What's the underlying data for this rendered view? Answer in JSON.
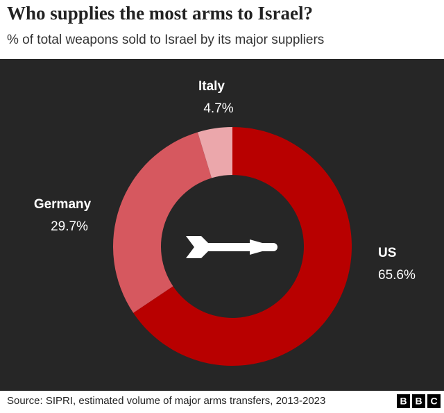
{
  "chart_data": {
    "type": "donut",
    "title": "Who supplies the most arms to Israel?",
    "subtitle": "% of total weapons sold to Israel by its major suppliers",
    "categories": [
      "US",
      "Germany",
      "Italy"
    ],
    "values": [
      65.6,
      29.7,
      4.7
    ],
    "value_labels": [
      "65.6%",
      "29.7%",
      "4.7%"
    ],
    "colors": [
      "#b80000",
      "#d6585f",
      "#eba7ab"
    ],
    "source": "Source: SIPRI, estimated volume of major arms transfers, 2013-2023",
    "logo": [
      "B",
      "B",
      "C"
    ]
  }
}
